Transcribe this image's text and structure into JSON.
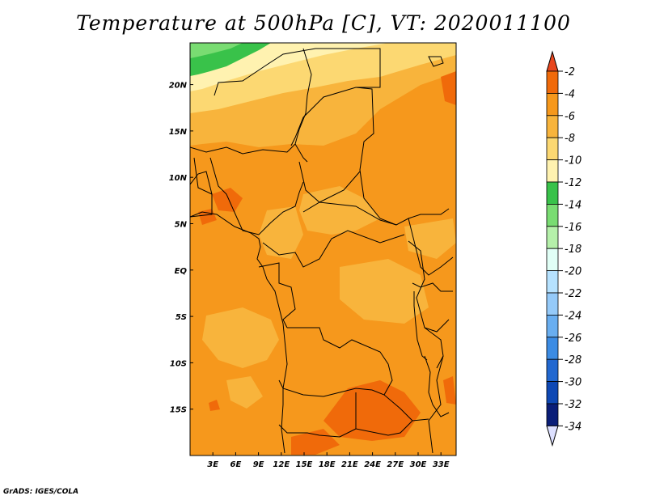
{
  "title": "Temperature at 500hPa [C], VT: 2020011100",
  "credit": "GrADS: IGES/COLA",
  "map": {
    "lon_range": [
      0,
      35
    ],
    "lat_range": [
      -20,
      24.5
    ],
    "lon_ticks": [
      {
        "value": 3,
        "label": "3E"
      },
      {
        "value": 6,
        "label": "6E"
      },
      {
        "value": 9,
        "label": "9E"
      },
      {
        "value": 12,
        "label": "12E"
      },
      {
        "value": 15,
        "label": "15E"
      },
      {
        "value": 18,
        "label": "18E"
      },
      {
        "value": 21,
        "label": "21E"
      },
      {
        "value": 24,
        "label": "24E"
      },
      {
        "value": 27,
        "label": "27E"
      },
      {
        "value": 30,
        "label": "30E"
      },
      {
        "value": 33,
        "label": "33E"
      }
    ],
    "lat_ticks": [
      {
        "value": 20,
        "label": "20N"
      },
      {
        "value": 15,
        "label": "15N"
      },
      {
        "value": 10,
        "label": "10N"
      },
      {
        "value": 5,
        "label": "5N"
      },
      {
        "value": 0,
        "label": "EQ"
      },
      {
        "value": -5,
        "label": "5S"
      },
      {
        "value": -10,
        "label": "10S"
      },
      {
        "value": -15,
        "label": "15S"
      }
    ]
  },
  "colorbar": {
    "levels": [
      "-2",
      "-4",
      "-6",
      "-8",
      "-10",
      "-12",
      "-14",
      "-16",
      "-18",
      "-20",
      "-22",
      "-24",
      "-26",
      "-28",
      "-30",
      "-32",
      "-34"
    ],
    "colors": [
      "#e8461e",
      "#f06a0a",
      "#f6981c",
      "#f8b43c",
      "#fcd872",
      "#fff2b0",
      "#39c24a",
      "#79dc72",
      "#b5f0aa",
      "#e1fff6",
      "#b6e2ff",
      "#95caf9",
      "#69aef0",
      "#3c8ce4",
      "#2268d0",
      "#0e48b4",
      "#0a1e78",
      "#dde0ff"
    ]
  }
}
